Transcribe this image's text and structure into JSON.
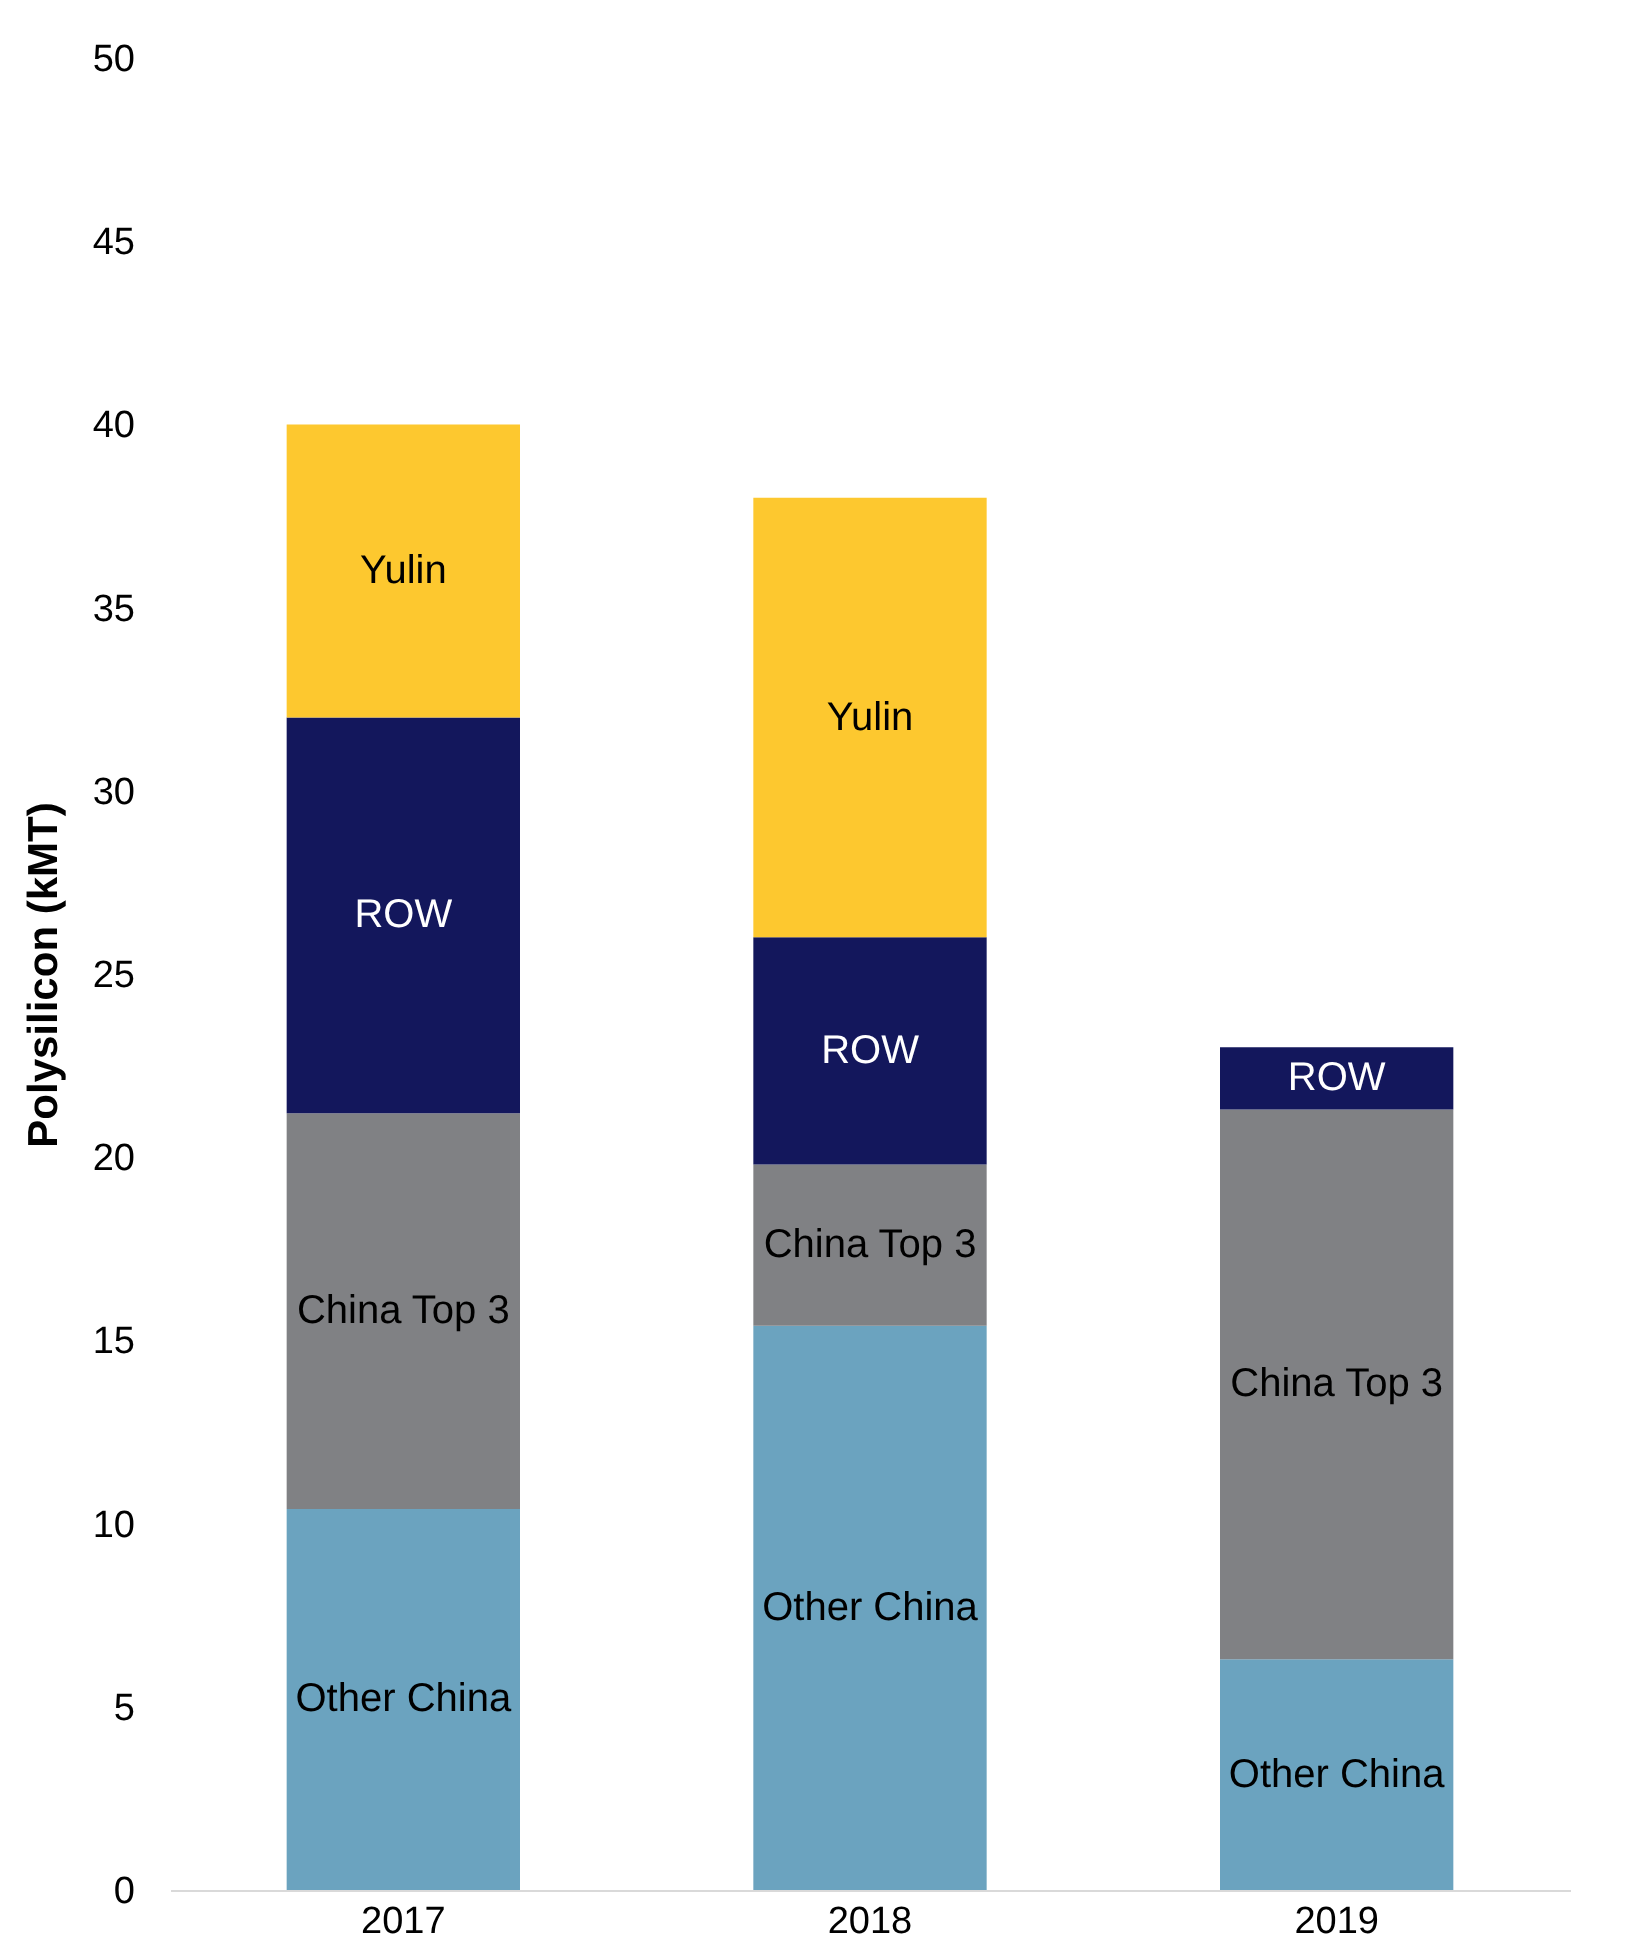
{
  "chart_data": {
    "type": "bar",
    "stacked": true,
    "ylabel": "Polysilicon (kMT)",
    "categories": [
      "2017",
      "2018",
      "2019"
    ],
    "series": [
      {
        "name": "Other China",
        "color": "#6ba3bf",
        "values": [
          10.4,
          15.4,
          6.3
        ]
      },
      {
        "name": "China Top 3",
        "color": "#808184",
        "values": [
          10.8,
          4.4,
          15.0
        ]
      },
      {
        "name": "ROW",
        "color": "#13175c",
        "values": [
          10.8,
          6.2,
          1.7
        ]
      },
      {
        "name": "Yulin",
        "color": "#fdc82f",
        "values": [
          8.0,
          12.0,
          null
        ]
      }
    ],
    "ylim": [
      0,
      50
    ],
    "yticks": [
      0,
      5,
      10,
      15,
      20,
      25,
      30,
      35,
      40,
      45,
      50
    ],
    "grid": false,
    "legend": false
  }
}
